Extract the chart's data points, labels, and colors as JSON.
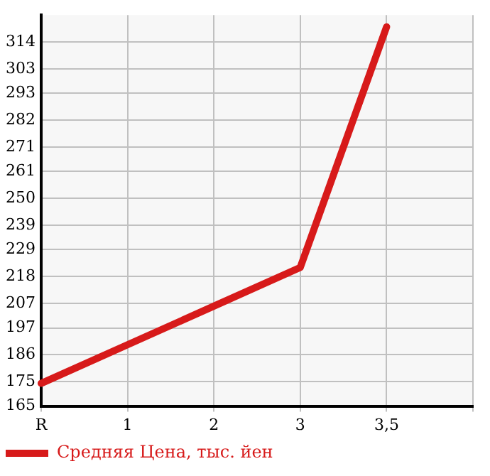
{
  "chart_data": {
    "type": "line",
    "categories": [
      "R",
      "1",
      "2",
      "3",
      "3,5",
      null
    ],
    "series": [
      {
        "name": "Средняя Цена, тыс. йен",
        "color": "#d71a1a",
        "values": [
          174.3,
          190.1,
          205.9,
          221.7,
          320.2,
          null
        ]
      }
    ],
    "ylim": [
      165,
      325
    ],
    "yticks": [
      165,
      175,
      186,
      197,
      207,
      218,
      229,
      239,
      250,
      261,
      271,
      282,
      293,
      303,
      314
    ],
    "grid": true,
    "legend": "bottom left",
    "marker": "none",
    "line_style": "solid"
  }
}
